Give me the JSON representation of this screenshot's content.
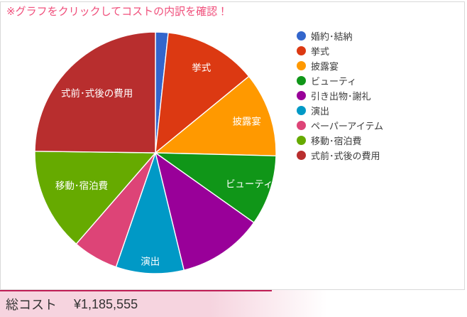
{
  "notice": {
    "text": "※グラフをクリックしてコストの内訳を確認！"
  },
  "footer": {
    "label": "総コスト",
    "value": "¥1,185,555"
  },
  "theme": {
    "notice_color": "#F0507C",
    "panel_border": "#D9D9D9",
    "accent_line_color": "#C01E56",
    "footer_bg": "#F6D4DF",
    "footer_text_color": "#333333",
    "legend_text_color": "#3B3B3B",
    "slice_stroke": "#FFFFFF",
    "slice_label_color": "#FFFFFF"
  },
  "chart_data": {
    "type": "pie",
    "title": "",
    "legend_position": "right",
    "total_label": "総コスト",
    "total_value": "¥1,185,555",
    "slices": [
      {
        "label": "婚約･結納",
        "percent": 1.7,
        "color": "#3366CC",
        "label_on_slice": false
      },
      {
        "label": "挙式",
        "percent": 12.4,
        "color": "#DC3912",
        "label_on_slice": true
      },
      {
        "label": "披露宴",
        "percent": 11.3,
        "color": "#FF9900",
        "label_on_slice": true
      },
      {
        "label": "ビューティ",
        "percent": 9.4,
        "color": "#109618",
        "label_on_slice": true
      },
      {
        "label": "引き出物･謝礼",
        "percent": 11.4,
        "color": "#990099",
        "label_on_slice": false
      },
      {
        "label": "演出",
        "percent": 9.1,
        "color": "#0099C6",
        "label_on_slice": true
      },
      {
        "label": "ペーパーアイテム",
        "percent": 6.1,
        "color": "#DD4477",
        "label_on_slice": false
      },
      {
        "label": "移動･宿泊費",
        "percent": 13.8,
        "color": "#66AA00",
        "label_on_slice": true
      },
      {
        "label": "式前･式後の費用",
        "percent": 24.8,
        "color": "#B82E2E",
        "label_on_slice": true
      }
    ]
  }
}
